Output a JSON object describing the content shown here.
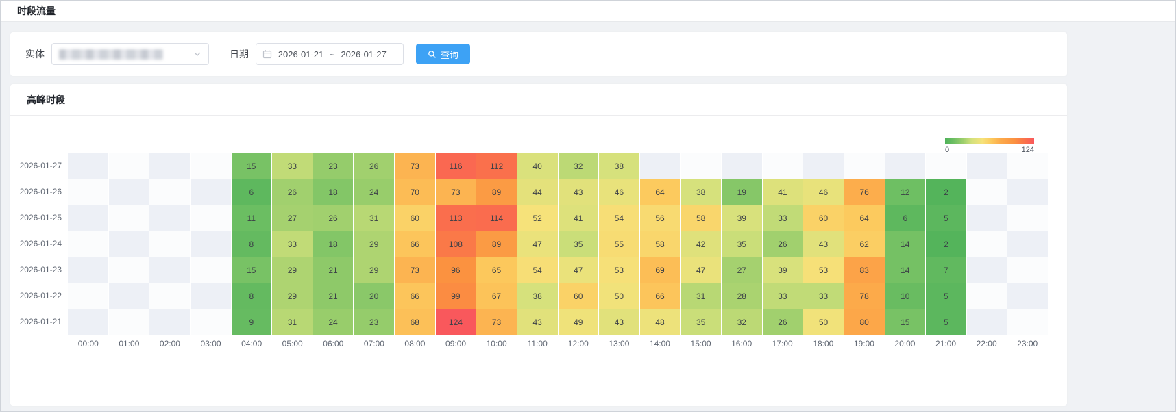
{
  "page": {
    "title": "时段流量"
  },
  "colors": {
    "accent": "#3da2f5"
  },
  "filters": {
    "entity_label": "实体",
    "date_label": "日期",
    "date_start": "2026-01-21",
    "date_separator": "~",
    "date_end": "2026-01-27",
    "query_button": "查询"
  },
  "panel": {
    "title": "高峰时段"
  },
  "chart_data": {
    "type": "heatmap",
    "title": "高峰时段",
    "x": [
      "00:00",
      "01:00",
      "02:00",
      "03:00",
      "04:00",
      "05:00",
      "06:00",
      "07:00",
      "08:00",
      "09:00",
      "10:00",
      "11:00",
      "12:00",
      "13:00",
      "14:00",
      "15:00",
      "16:00",
      "17:00",
      "18:00",
      "19:00",
      "20:00",
      "21:00",
      "22:00",
      "23:00"
    ],
    "y": [
      "2026-01-27",
      "2026-01-26",
      "2026-01-25",
      "2026-01-24",
      "2026-01-23",
      "2026-01-22",
      "2026-01-21"
    ],
    "values_by_row": [
      [
        null,
        null,
        null,
        null,
        15,
        33,
        23,
        26,
        73,
        116,
        112,
        40,
        32,
        38,
        null,
        null,
        null,
        null,
        null,
        null,
        null,
        null,
        null,
        null
      ],
      [
        null,
        null,
        null,
        null,
        6,
        26,
        18,
        24,
        70,
        73,
        89,
        44,
        43,
        46,
        64,
        38,
        19,
        41,
        46,
        76,
        12,
        2,
        null,
        null
      ],
      [
        null,
        null,
        null,
        null,
        11,
        27,
        26,
        31,
        60,
        113,
        114,
        52,
        41,
        54,
        56,
        58,
        39,
        33,
        60,
        64,
        6,
        5,
        null,
        null
      ],
      [
        null,
        null,
        null,
        null,
        8,
        33,
        18,
        29,
        66,
        108,
        89,
        47,
        35,
        55,
        58,
        42,
        35,
        26,
        43,
        62,
        14,
        2,
        null,
        null
      ],
      [
        null,
        null,
        null,
        null,
        15,
        29,
        21,
        29,
        73,
        96,
        65,
        54,
        47,
        53,
        69,
        47,
        27,
        39,
        53,
        83,
        14,
        7,
        null,
        null
      ],
      [
        null,
        null,
        null,
        null,
        8,
        29,
        21,
        20,
        66,
        99,
        67,
        38,
        60,
        50,
        66,
        31,
        28,
        33,
        33,
        78,
        10,
        5,
        null,
        null
      ],
      [
        null,
        null,
        null,
        null,
        9,
        31,
        24,
        23,
        68,
        124,
        73,
        43,
        49,
        43,
        48,
        35,
        32,
        26,
        50,
        80,
        15,
        5,
        null,
        null
      ]
    ],
    "visual_map": {
      "min": 0,
      "max": 124,
      "gradient": [
        {
          "pos": 0.0,
          "color": "#4fb25a"
        },
        {
          "pos": 0.1,
          "color": "#6fbf63"
        },
        {
          "pos": 0.2,
          "color": "#9bce6c"
        },
        {
          "pos": 0.3,
          "color": "#d4e17c"
        },
        {
          "pos": 0.42,
          "color": "#f6e27a"
        },
        {
          "pos": 0.52,
          "color": "#fcc95d"
        },
        {
          "pos": 0.62,
          "color": "#fcab4b"
        },
        {
          "pos": 0.78,
          "color": "#fb9140"
        },
        {
          "pos": 0.9,
          "color": "#fa714b"
        },
        {
          "pos": 1.0,
          "color": "#f9585c"
        }
      ]
    },
    "empty_cell_colors": [
      "#edf0f6",
      "#fbfcfd"
    ],
    "grid": true,
    "legend_position": "top-right"
  }
}
